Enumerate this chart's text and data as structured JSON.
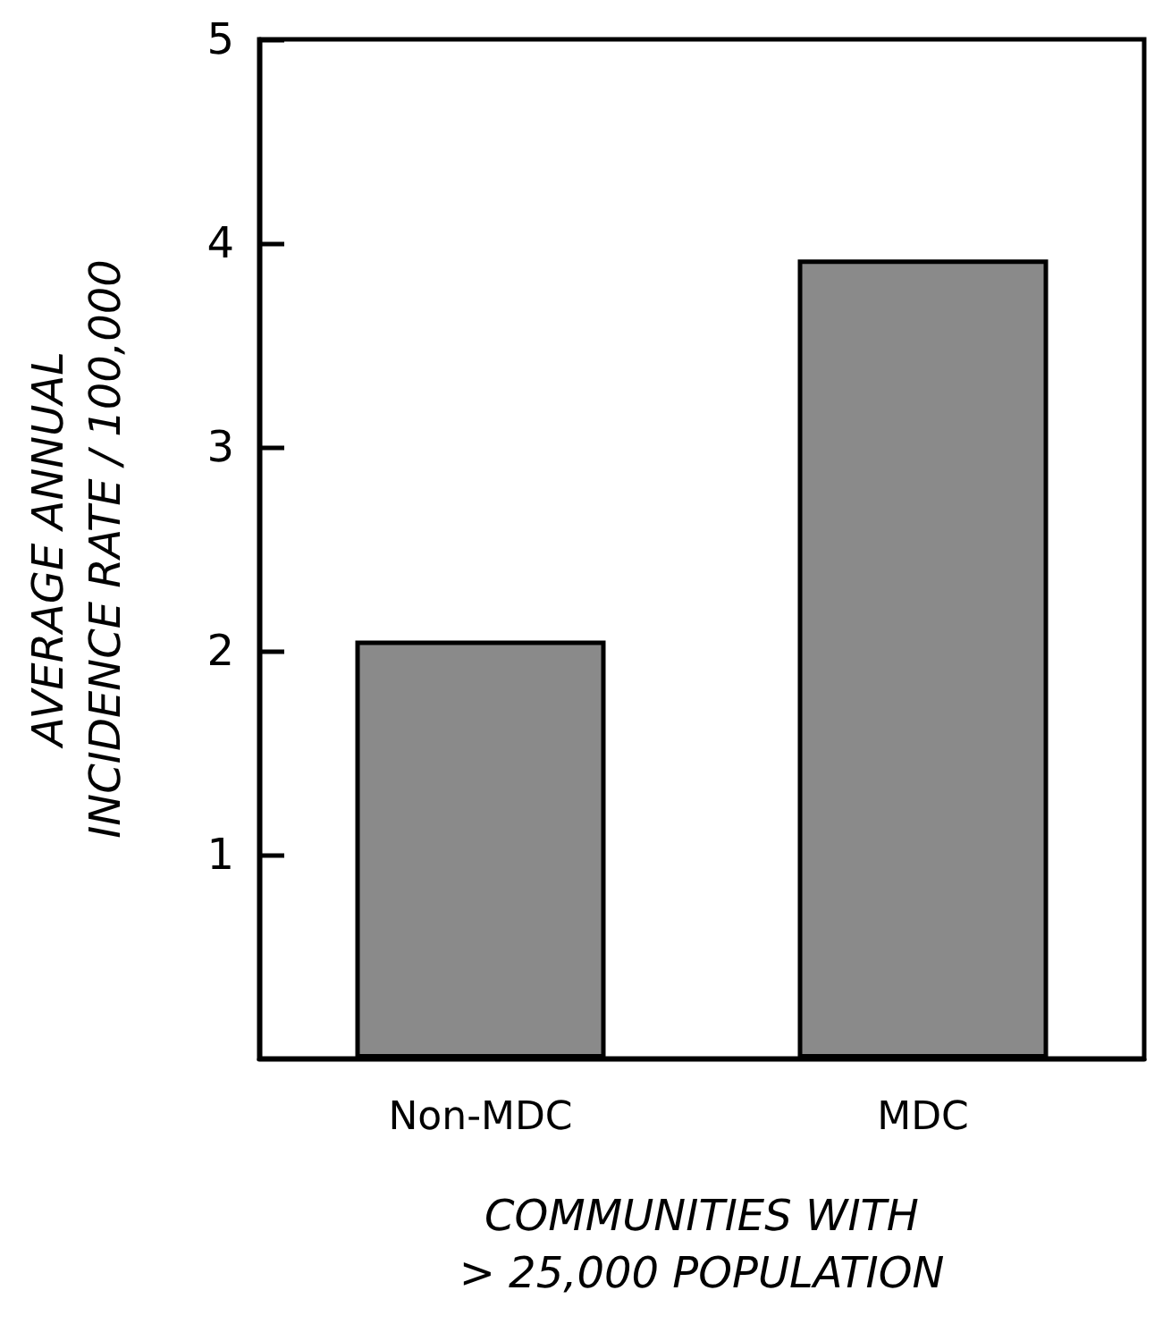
{
  "chart_data": {
    "type": "bar",
    "categories": [
      "Non-MDC",
      "MDC"
    ],
    "values": [
      2.05,
      3.92
    ],
    "color": "#8a8a8a",
    "xlabel": "COMMUNITIES WITH\n> 25,000 POPULATION",
    "ylabel": "AVERAGE ANNUAL\nINCIDENCE RATE / 100,000",
    "ylim": [
      0,
      5
    ],
    "yticks": [
      1,
      2,
      3,
      4,
      5
    ],
    "grid": false
  }
}
